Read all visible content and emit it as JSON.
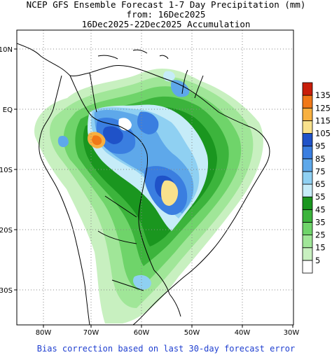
{
  "title": {
    "line1": "NCEP GFS Ensemble Forecast 1-7 Day Precipitation (mm)",
    "line2": "from: 16Dec2025",
    "line3": "16Dec2025-22Dec2025 Accumulation"
  },
  "footer": "Bias correction based on last 30-day forecast error",
  "axes": {
    "lon_ticks": [
      "80W",
      "70W",
      "60W",
      "50W",
      "40W",
      "30W"
    ],
    "lat_ticks": [
      "10N",
      "EQ",
      "10S",
      "20S",
      "30S"
    ]
  },
  "colorbar": {
    "labels": [
      "5",
      "15",
      "25",
      "35",
      "45",
      "55",
      "65",
      "75",
      "85",
      "95",
      "105",
      "115",
      "125",
      "135"
    ],
    "colors": [
      "#ffffff",
      "#c8f0c0",
      "#a0e698",
      "#6fd46a",
      "#3cb43c",
      "#1a961f",
      "#c6ecf8",
      "#8fd0f2",
      "#5ea8ea",
      "#3a7ee0",
      "#1f52c8",
      "#f8e18c",
      "#f8b040",
      "#f07818",
      "#c81e0a"
    ]
  }
}
